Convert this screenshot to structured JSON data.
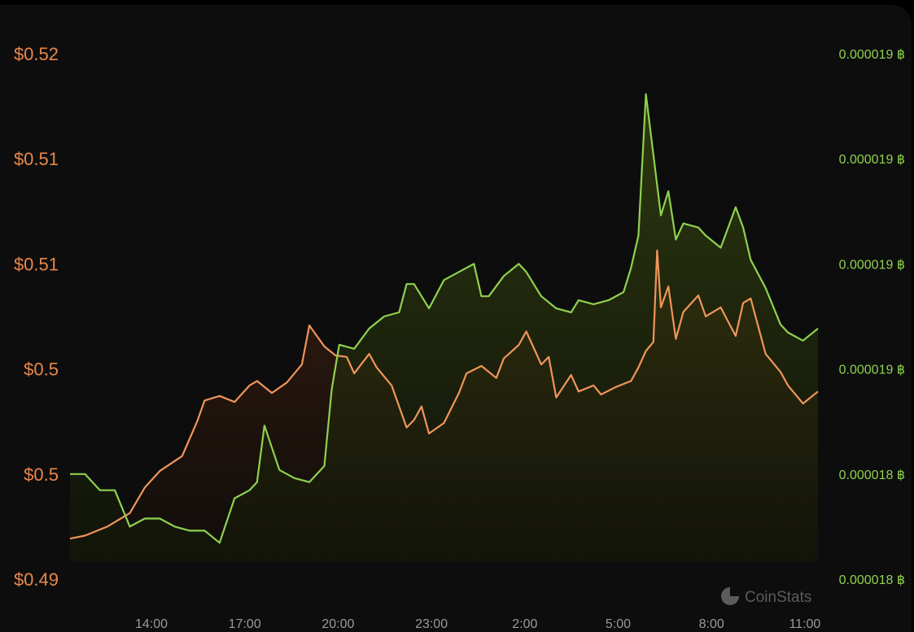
{
  "chart_data": {
    "type": "line",
    "brand": "CoinStats",
    "colors": {
      "usd": "#f0955a",
      "btc": "#8fd14f"
    },
    "x_tick_labels": [
      "14:00",
      "17:00",
      "20:00",
      "23:00",
      "2:00",
      "5:00",
      "8:00",
      "11:00"
    ],
    "y_left": {
      "tick_labels": [
        "$0.52",
        "$0.51",
        "$0.51",
        "$0.5",
        "$0.5",
        "$0.49"
      ],
      "range": [
        0.49,
        0.525
      ]
    },
    "y_right": {
      "tick_labels": [
        "0.000019 ฿",
        "0.000019 ฿",
        "0.000019 ฿",
        "0.000019 ฿",
        "0.000018 ฿",
        "0.000018 ฿"
      ],
      "range": [
        1.8e-05,
        1.93e-05
      ]
    },
    "series": [
      {
        "key": "usd",
        "axis": "left",
        "x": [
          0.0,
          0.02,
          0.05,
          0.08,
          0.1,
          0.12,
          0.15,
          0.17,
          0.18,
          0.2,
          0.22,
          0.24,
          0.25,
          0.27,
          0.29,
          0.31,
          0.32,
          0.34,
          0.355,
          0.37,
          0.38,
          0.4,
          0.41,
          0.43,
          0.45,
          0.46,
          0.47,
          0.48,
          0.5,
          0.52,
          0.53,
          0.55,
          0.57,
          0.58,
          0.6,
          0.61,
          0.63,
          0.64,
          0.65,
          0.67,
          0.68,
          0.7,
          0.71,
          0.73,
          0.75,
          0.76,
          0.77,
          0.78,
          0.785,
          0.79,
          0.8,
          0.81,
          0.82,
          0.84,
          0.85,
          0.87,
          0.89,
          0.9,
          0.91,
          0.93,
          0.95,
          0.96,
          0.98,
          1.0
        ],
        "values": [
          0.4927,
          0.4929,
          0.4935,
          0.4944,
          0.4961,
          0.4972,
          0.4982,
          0.5005,
          0.5019,
          0.5022,
          0.5018,
          0.5029,
          0.5032,
          0.5024,
          0.5031,
          0.5043,
          0.5069,
          0.5055,
          0.5049,
          0.5048,
          0.5037,
          0.505,
          0.5041,
          0.5029,
          0.5001,
          0.5006,
          0.5015,
          0.4997,
          0.5004,
          0.5024,
          0.5037,
          0.5042,
          0.5034,
          0.5047,
          0.5056,
          0.5065,
          0.5043,
          0.5048,
          0.5021,
          0.5036,
          0.5025,
          0.5029,
          0.5023,
          0.5028,
          0.5032,
          0.5041,
          0.5052,
          0.5058,
          0.5119,
          0.5081,
          0.5095,
          0.506,
          0.5078,
          0.5089,
          0.5075,
          0.5081,
          0.5062,
          0.5084,
          0.5087,
          0.505,
          0.5038,
          0.5029,
          0.5017,
          0.5025
        ]
      },
      {
        "key": "btc",
        "axis": "right",
        "x": [
          0.0,
          0.02,
          0.04,
          0.06,
          0.08,
          0.1,
          0.12,
          0.14,
          0.16,
          0.18,
          0.2,
          0.22,
          0.24,
          0.25,
          0.26,
          0.28,
          0.3,
          0.32,
          0.34,
          0.35,
          0.36,
          0.38,
          0.4,
          0.42,
          0.44,
          0.45,
          0.46,
          0.48,
          0.5,
          0.52,
          0.54,
          0.55,
          0.56,
          0.58,
          0.6,
          0.61,
          0.63,
          0.65,
          0.67,
          0.68,
          0.7,
          0.72,
          0.74,
          0.75,
          0.76,
          0.77,
          0.78,
          0.79,
          0.8,
          0.81,
          0.82,
          0.84,
          0.85,
          0.87,
          0.89,
          0.9,
          0.91,
          0.93,
          0.95,
          0.96,
          0.98,
          1.0
        ],
        "values": [
          1.826e-05,
          1.826e-05,
          1.822e-05,
          1.822e-05,
          1.813e-05,
          1.815e-05,
          1.815e-05,
          1.813e-05,
          1.812e-05,
          1.812e-05,
          1.809e-05,
          1.82e-05,
          1.822e-05,
          1.824e-05,
          1.838e-05,
          1.827e-05,
          1.825e-05,
          1.824e-05,
          1.828e-05,
          1.847e-05,
          1.858e-05,
          1.857e-05,
          1.862e-05,
          1.865e-05,
          1.866e-05,
          1.873e-05,
          1.873e-05,
          1.867e-05,
          1.874e-05,
          1.876e-05,
          1.878e-05,
          1.87e-05,
          1.87e-05,
          1.875e-05,
          1.878e-05,
          1.876e-05,
          1.87e-05,
          1.867e-05,
          1.866e-05,
          1.869e-05,
          1.868e-05,
          1.869e-05,
          1.871e-05,
          1.877e-05,
          1.885e-05,
          1.92e-05,
          1.905e-05,
          1.89e-05,
          1.896e-05,
          1.884e-05,
          1.888e-05,
          1.887e-05,
          1.885e-05,
          1.882e-05,
          1.892e-05,
          1.887e-05,
          1.879e-05,
          1.872e-05,
          1.863e-05,
          1.861e-05,
          1.859e-05,
          1.862e-05
        ]
      }
    ]
  }
}
